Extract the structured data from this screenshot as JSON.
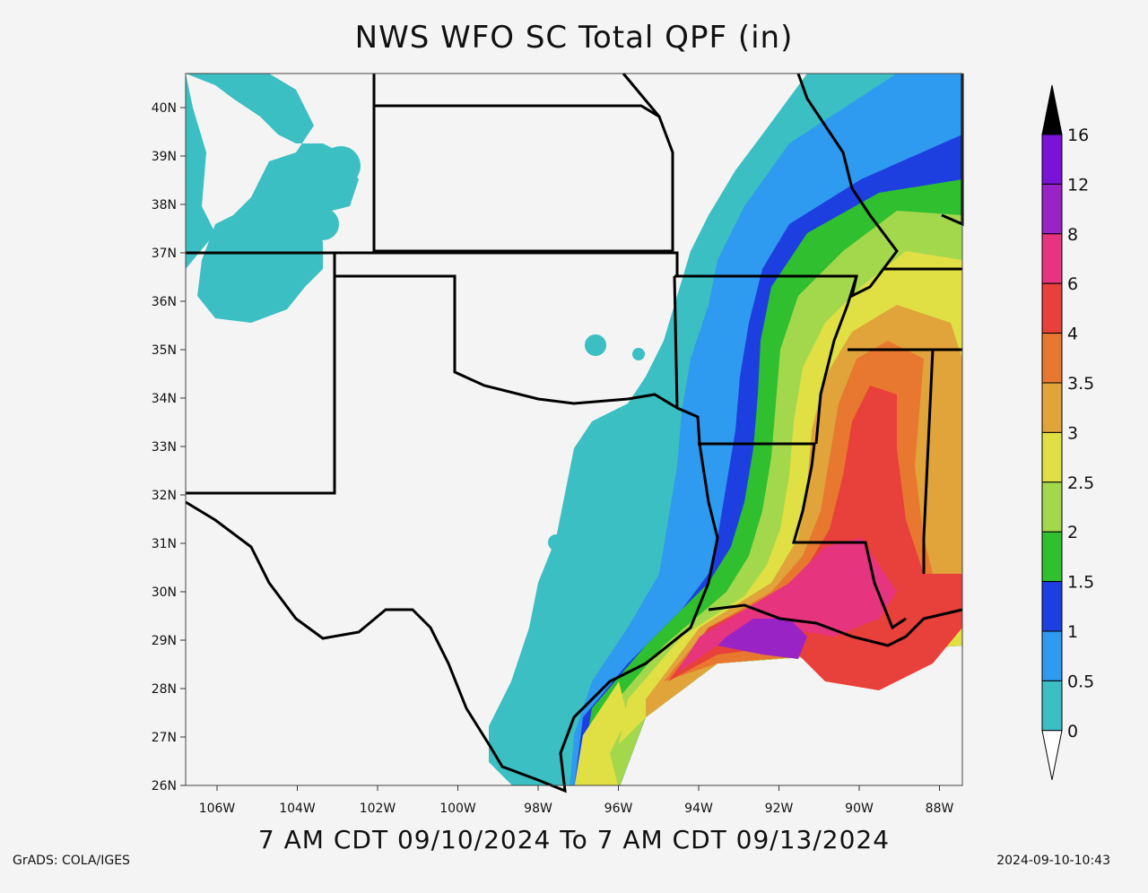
{
  "title": "NWS WFO SC Total QPF (in)",
  "valid_period": "7 AM CDT 09/10/2024 To 7 AM CDT 09/13/2024",
  "credit": "GrADS: COLA/IGES",
  "timestamp": "2024-09-10-10:43",
  "lat_labels": [
    "40N",
    "39N",
    "38N",
    "37N",
    "36N",
    "35N",
    "34N",
    "33N",
    "32N",
    "31N",
    "30N",
    "29N",
    "28N",
    "27N",
    "26N"
  ],
  "lon_labels": [
    "106W",
    "104W",
    "102W",
    "100W",
    "98W",
    "96W",
    "94W",
    "92W",
    "90W",
    "88W"
  ],
  "colorbar": {
    "labels": [
      "0",
      "0.5",
      "1",
      "1.5",
      "2",
      "2.5",
      "3",
      "3.5",
      "4",
      "6",
      "8",
      "12",
      "16"
    ],
    "colors": [
      "#ffffff",
      "#3bbfc3",
      "#2e9af0",
      "#1e3fe0",
      "#2fbf2f",
      "#a4d84c",
      "#e0df44",
      "#e0a43a",
      "#e8782f",
      "#e8403a",
      "#e6357e",
      "#9a23c6",
      "#7a12d8",
      "#000000"
    ]
  }
}
